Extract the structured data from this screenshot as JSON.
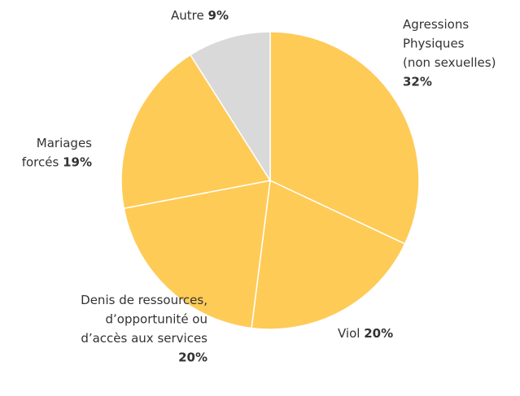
{
  "chart_data": {
    "type": "pie",
    "categories": [
      [
        "Agressions",
        "Physiques",
        "(non sexuelles)"
      ],
      [
        "Viol"
      ],
      [
        "Denis de ressources,",
        "d’opportunité ou",
        "d’accès aux services"
      ],
      [
        "Mariages",
        "forcés"
      ],
      [
        "Autre"
      ]
    ],
    "values": [
      32,
      20,
      20,
      19,
      9
    ],
    "value_labels": [
      "32%",
      "20%",
      "20%",
      "19%",
      "9%"
    ],
    "colors": [
      "#fecb57",
      "#fecb57",
      "#fecb57",
      "#fecb57",
      "#d9d9d9"
    ]
  }
}
